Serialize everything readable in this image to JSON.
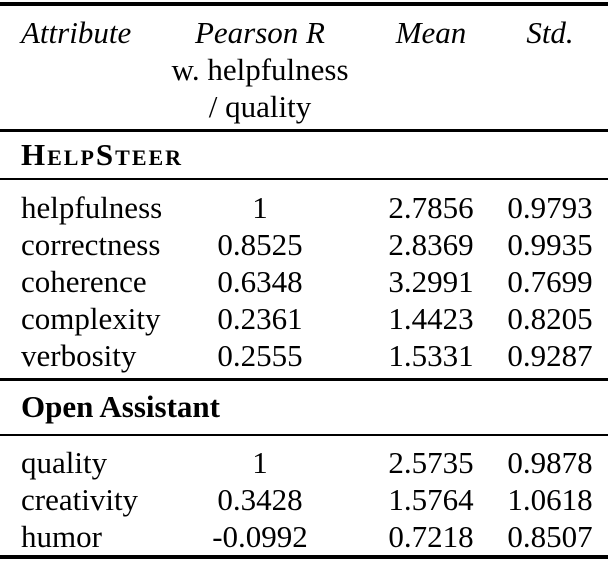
{
  "table": {
    "header": {
      "attribute": "Attribute",
      "pearson_line1": "Pearson R",
      "pearson_line2": "w. helpfulness",
      "pearson_line3": "/ quality",
      "mean": "Mean",
      "std": "Std."
    },
    "sections": [
      {
        "title": "HelpSteer",
        "rows": [
          {
            "attribute": "helpfulness",
            "pearson_r": "1",
            "mean": "2.7856",
            "std": "0.9793"
          },
          {
            "attribute": "correctness",
            "pearson_r": "0.8525",
            "mean": "2.8369",
            "std": "0.9935"
          },
          {
            "attribute": "coherence",
            "pearson_r": "0.6348",
            "mean": "3.2991",
            "std": "0.7699"
          },
          {
            "attribute": "complexity",
            "pearson_r": "0.2361",
            "mean": "1.4423",
            "std": "0.8205"
          },
          {
            "attribute": "verbosity",
            "pearson_r": "0.2555",
            "mean": "1.5331",
            "std": "0.9287"
          }
        ]
      },
      {
        "title": "Open Assistant",
        "rows": [
          {
            "attribute": "quality",
            "pearson_r": "1",
            "mean": "2.5735",
            "std": "0.9878"
          },
          {
            "attribute": "creativity",
            "pearson_r": "0.3428",
            "mean": "1.5764",
            "std": "1.0618"
          },
          {
            "attribute": "humor",
            "pearson_r": "-0.0992",
            "mean": "0.7218",
            "std": "0.8507"
          }
        ]
      }
    ],
    "colors": {
      "text": "#000000",
      "rule": "#000000",
      "background": "#ffffff"
    }
  },
  "chart_data": {
    "type": "table",
    "columns": [
      "Attribute",
      "Pearson R w. helpfulness / quality",
      "Mean",
      "Std."
    ],
    "sections": [
      {
        "name": "HelpSteer",
        "rows": [
          [
            "helpfulness",
            1,
            2.7856,
            0.9793
          ],
          [
            "correctness",
            0.8525,
            2.8369,
            0.9935
          ],
          [
            "coherence",
            0.6348,
            3.2991,
            0.7699
          ],
          [
            "complexity",
            0.2361,
            1.4423,
            0.8205
          ],
          [
            "verbosity",
            0.2555,
            1.5331,
            0.9287
          ]
        ]
      },
      {
        "name": "Open Assistant",
        "rows": [
          [
            "quality",
            1,
            2.5735,
            0.9878
          ],
          [
            "creativity",
            0.3428,
            1.5764,
            1.0618
          ],
          [
            "humor",
            -0.0992,
            0.7218,
            0.8507
          ]
        ]
      }
    ]
  }
}
